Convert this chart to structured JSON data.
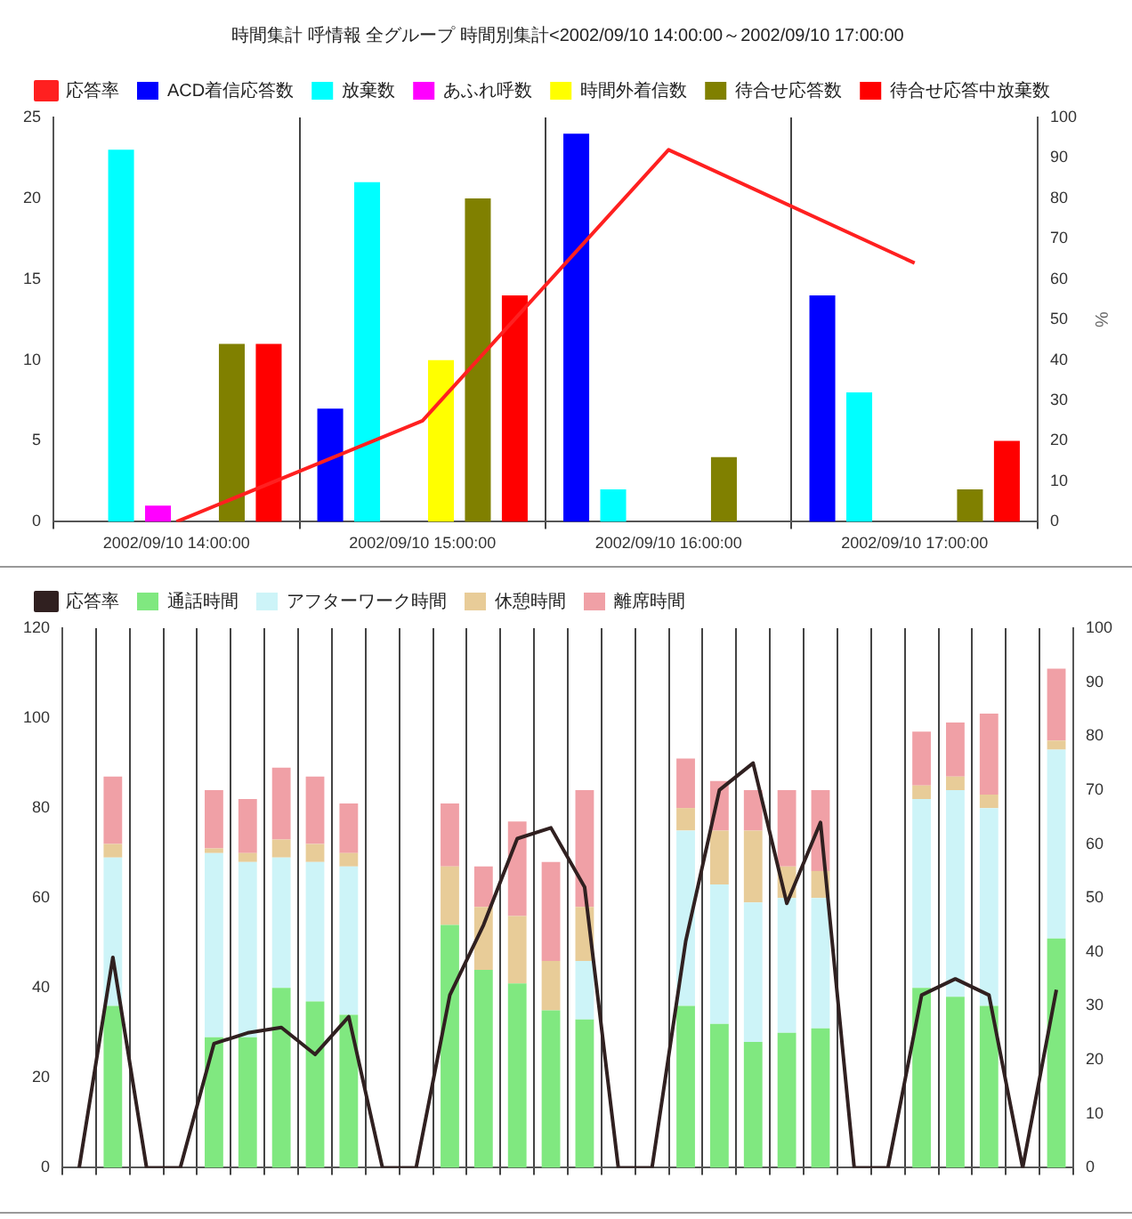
{
  "chart_data": [
    {
      "type": "bar",
      "title": "時間集計 呼情報 全グループ 時間別集計<2002/09/10 14:00:00～2002/09/10 17:00:00",
      "categories": [
        "2002/09/10 14:00:00",
        "2002/09/10 15:00:00",
        "2002/09/10 16:00:00",
        "2002/09/10 17:00:00"
      ],
      "series": [
        {
          "type": "line",
          "name": "応答率",
          "color": "#ff2020",
          "axis": "y2",
          "values": [
            0,
            25,
            92,
            64
          ]
        },
        {
          "name": "ACD着信応答数",
          "color": "#0000ff",
          "values": [
            0,
            7,
            24,
            14
          ]
        },
        {
          "name": "放棄数",
          "color": "#00ffff",
          "values": [
            23,
            21,
            2,
            8
          ]
        },
        {
          "name": "あふれ呼数",
          "color": "#ff00ff",
          "values": [
            1,
            0,
            0,
            0
          ]
        },
        {
          "name": "時間外着信数",
          "color": "#ffff00",
          "values": [
            0,
            10,
            0,
            0
          ]
        },
        {
          "name": "待合せ応答数",
          "color": "#808000",
          "values": [
            11,
            20,
            4,
            2
          ]
        },
        {
          "name": "待合せ応答中放棄数",
          "color": "#ff0000",
          "values": [
            11,
            14,
            0,
            5
          ]
        }
      ],
      "ylim": [
        0,
        25
      ],
      "yticks": [
        0,
        5,
        10,
        15,
        20,
        25
      ],
      "y2lim": [
        0,
        100
      ],
      "y2ticks": [
        0,
        10,
        20,
        30,
        40,
        50,
        60,
        70,
        80,
        90,
        100
      ],
      "y2label": "%",
      "grid": "x",
      "legend": "top"
    },
    {
      "type": "bar",
      "stacked": true,
      "categories": [
        null,
        null,
        null,
        null,
        null,
        null,
        null,
        null,
        null,
        null,
        null,
        null,
        null,
        null,
        null,
        null,
        null,
        null,
        null,
        null,
        null,
        null,
        null,
        null,
        null,
        null,
        null,
        null,
        null,
        null
      ],
      "series": [
        {
          "type": "line",
          "name": "応答率",
          "color": "#302020",
          "axis": "y2",
          "values": [
            0,
            39,
            0,
            0,
            23,
            25,
            26,
            21,
            28,
            0,
            0,
            32,
            45,
            61,
            63,
            52,
            0,
            0,
            42,
            70,
            75,
            49,
            64,
            0,
            0,
            32,
            35,
            32,
            0,
            33
          ]
        },
        {
          "name": "通話時間",
          "color": "#80e880",
          "values": [
            null,
            36,
            null,
            null,
            29,
            29,
            40,
            37,
            34,
            null,
            null,
            54,
            44,
            41,
            35,
            33,
            null,
            null,
            36,
            32,
            28,
            30,
            31,
            null,
            null,
            40,
            38,
            36,
            null,
            51
          ]
        },
        {
          "name": "アフターワーク時間",
          "color": "#cdf4f8",
          "values": [
            null,
            33,
            null,
            null,
            41,
            39,
            29,
            31,
            33,
            null,
            null,
            0,
            0,
            0,
            0,
            13,
            null,
            null,
            39,
            31,
            31,
            30,
            29,
            null,
            null,
            42,
            46,
            44,
            null,
            42
          ]
        },
        {
          "name": "休憩時間",
          "color": "#e8cc98",
          "values": [
            null,
            3,
            null,
            null,
            1,
            2,
            4,
            4,
            3,
            null,
            null,
            13,
            14,
            15,
            11,
            12,
            null,
            null,
            5,
            12,
            16,
            7,
            6,
            null,
            null,
            3,
            3,
            3,
            null,
            2
          ]
        },
        {
          "name": "離席時間",
          "color": "#f0a0a6",
          "values": [
            null,
            15,
            null,
            null,
            13,
            12,
            16,
            15,
            11,
            null,
            null,
            14,
            9,
            21,
            22,
            26,
            null,
            null,
            11,
            11,
            9,
            17,
            18,
            null,
            null,
            12,
            12,
            18,
            null,
            16
          ]
        }
      ],
      "ylim": [
        0,
        120
      ],
      "yticks": [
        0,
        20,
        40,
        60,
        80,
        100,
        120
      ],
      "y2lim": [
        0,
        100
      ],
      "y2ticks": [
        0,
        10,
        20,
        30,
        40,
        50,
        60,
        70,
        80,
        90,
        100
      ],
      "grid": "x",
      "legend": "top"
    }
  ]
}
